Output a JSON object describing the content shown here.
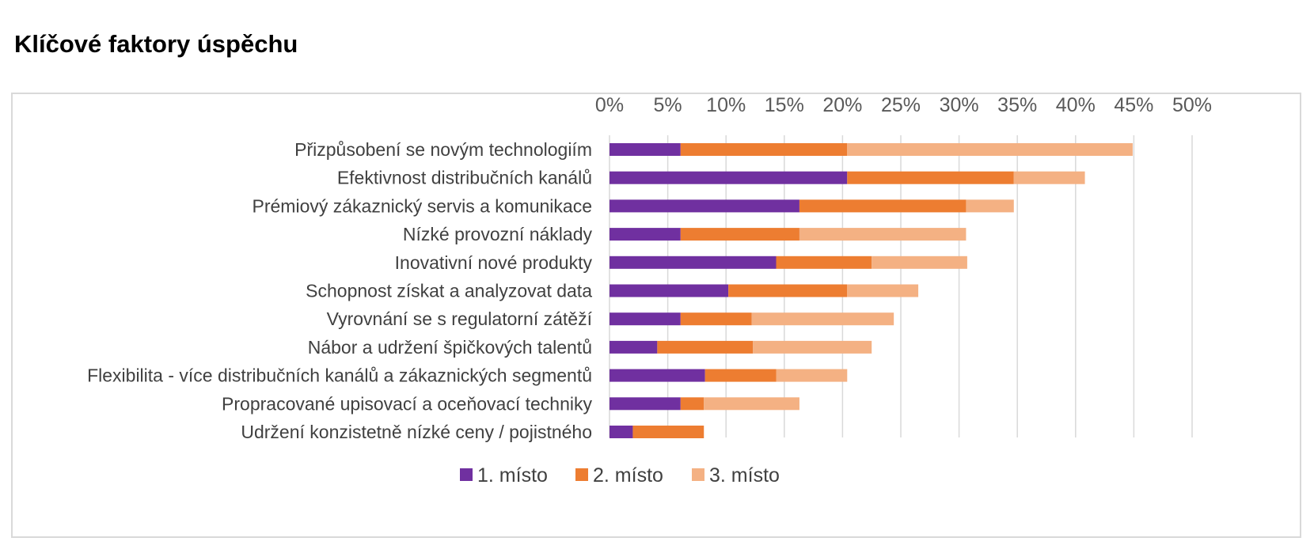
{
  "page": {
    "title": "Klíčové faktory úspěchu"
  },
  "chart_data": {
    "type": "bar",
    "orientation": "horizontal",
    "stacked": true,
    "xaxis_position": "top",
    "xlim": [
      0,
      50
    ],
    "x_ticks": [
      "0%",
      "5%",
      "10%",
      "15%",
      "20%",
      "25%",
      "30%",
      "35%",
      "40%",
      "45%",
      "50%"
    ],
    "grid": true,
    "legend_position": "bottom",
    "categories": [
      "Přizpůsobení se novým technologiím",
      "Efektivnost distribučních kanálů",
      "Prémiový zákaznický servis a komunikace",
      "Nízké provozní náklady",
      "Inovativní nové produkty",
      "Schopnost získat a analyzovat data",
      "Vyrovnání se s regulatorní zátěží",
      "Nábor a udržení špičkových talentů",
      "Flexibilita - více distribučních kanálů a zákaznických segmentů",
      "Propracované upisovací a oceňovací techniky",
      "Udržení konzistetně nízké ceny / pojistného"
    ],
    "series": [
      {
        "name": "1. místo",
        "color": "#7030a0",
        "values": [
          6.1,
          20.4,
          16.3,
          6.1,
          14.3,
          10.2,
          6.1,
          4.1,
          8.2,
          6.1,
          2.0
        ]
      },
      {
        "name": "2. místo",
        "color": "#ed7d31",
        "values": [
          14.3,
          14.3,
          14.3,
          10.2,
          8.2,
          10.2,
          6.1,
          8.2,
          6.1,
          2.0,
          6.1
        ]
      },
      {
        "name": "3. místo",
        "color": "#f4b183",
        "values": [
          24.5,
          6.1,
          4.1,
          14.3,
          8.2,
          6.1,
          12.2,
          10.2,
          6.1,
          8.2,
          0
        ]
      }
    ]
  }
}
